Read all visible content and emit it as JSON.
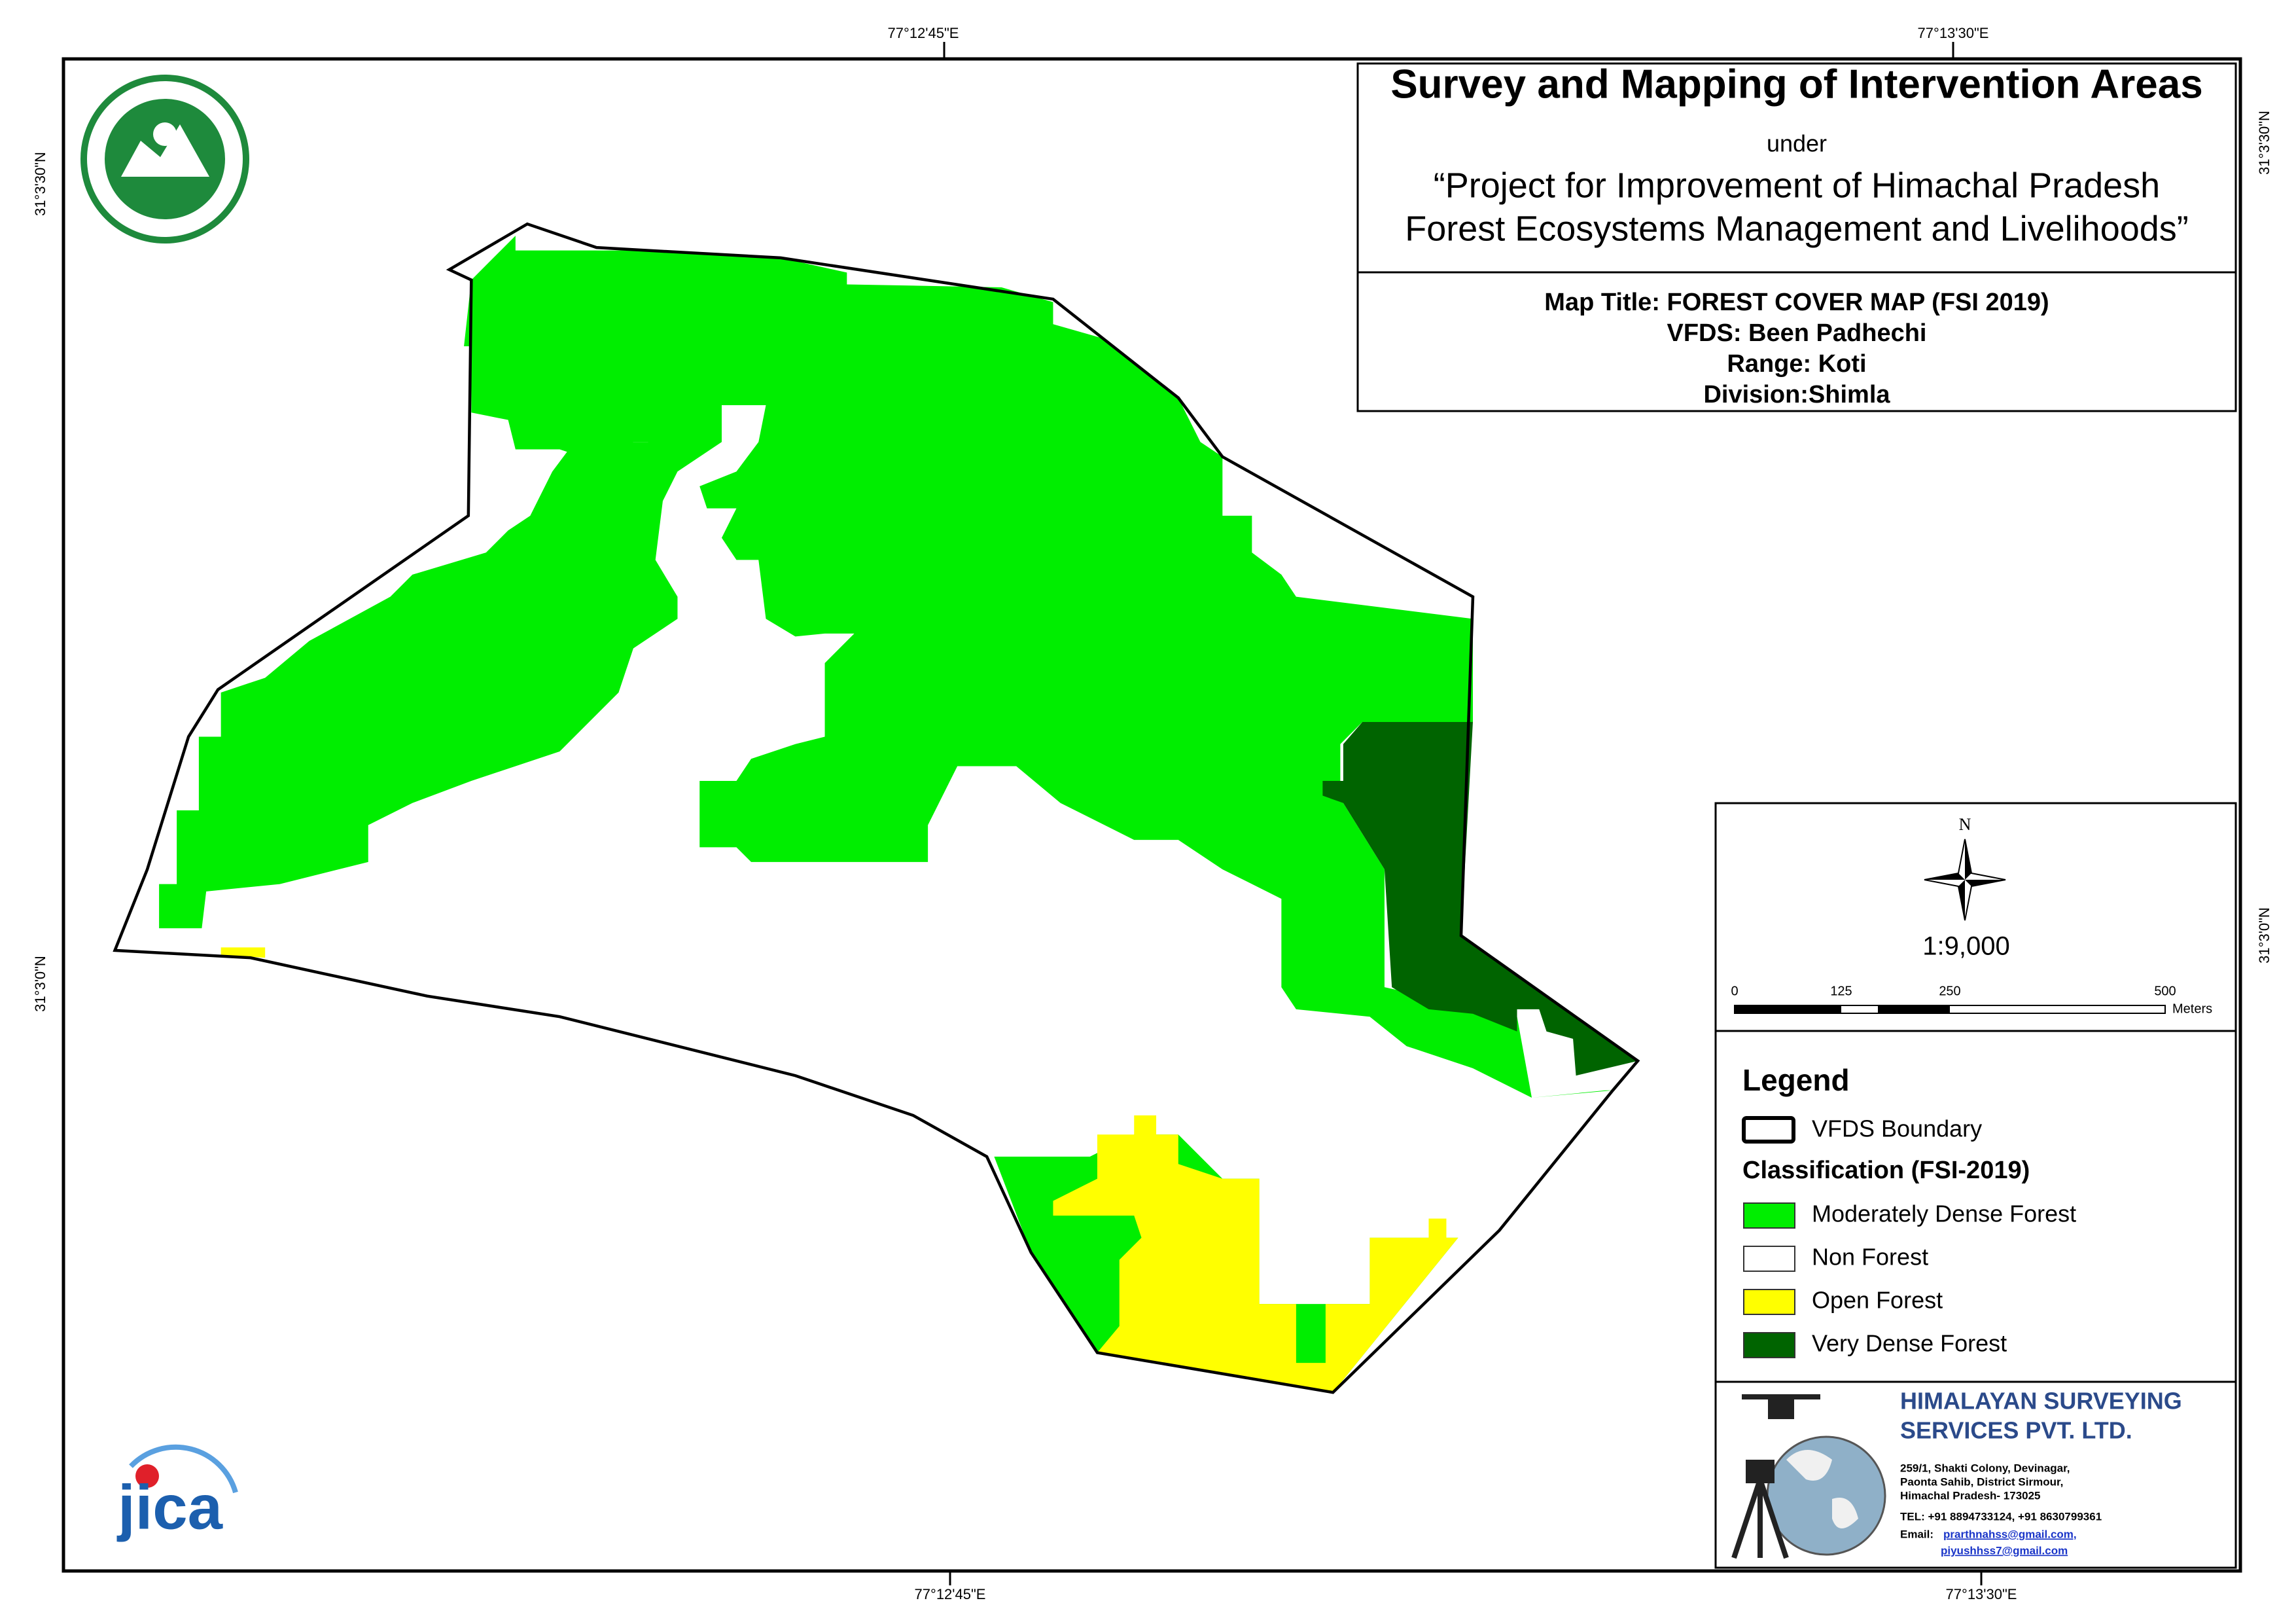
{
  "header": {
    "title": "Survey and Mapping of Intervention Areas",
    "under": "under",
    "project": [
      "“Project for Improvement of Himachal Pradesh",
      "Forest Ecosystems Management and Livelihoods”"
    ]
  },
  "map_info": [
    "Map Title: FOREST COVER MAP (FSI 2019)",
    "VFDS: Been Padhechi",
    "Range: Koti",
    "Division:Shimla"
  ],
  "coordinates": {
    "top": [
      "77°12'45\"E",
      "77°13'30\"E"
    ],
    "bottom": [
      "77°12'45\"E",
      "77°13'30\"E"
    ],
    "left": [
      "31°3'30\"N",
      "31°3'0\"N"
    ],
    "right": [
      "31°3'30\"N",
      "31°3'0\"N"
    ]
  },
  "north": "N",
  "scale": "1:9,000",
  "scale_bar": {
    "labels": [
      "0",
      "125",
      "250",
      "500"
    ],
    "unit": "Meters"
  },
  "legend": {
    "title": "Legend",
    "boundary": "VFDS Boundary",
    "classification_title": "Classification (FSI-2019)",
    "items": [
      {
        "label": "Moderately Dense Forest",
        "color": "#00ee00"
      },
      {
        "label": "Non Forest",
        "color": "#ffffff"
      },
      {
        "label": "Open Forest",
        "color": "#ffff00"
      },
      {
        "label": "Very Dense Forest",
        "color": "#006400"
      }
    ]
  },
  "company": {
    "name": [
      "HIMALAYAN SURVEYING",
      "SERVICES PVT. LTD."
    ],
    "address": [
      "259/1, Shakti Colony, Devinagar,",
      "Paonta Sahib, District Sirmour,",
      "Himachal Pradesh- 173025",
      "TEL: +91 8894733124, +91 8630799361"
    ],
    "email_label": "Email:",
    "emails": [
      "prarthnahss@gmail.com,",
      "piyushhss7@gmail.com"
    ]
  },
  "logo_text": "jica"
}
